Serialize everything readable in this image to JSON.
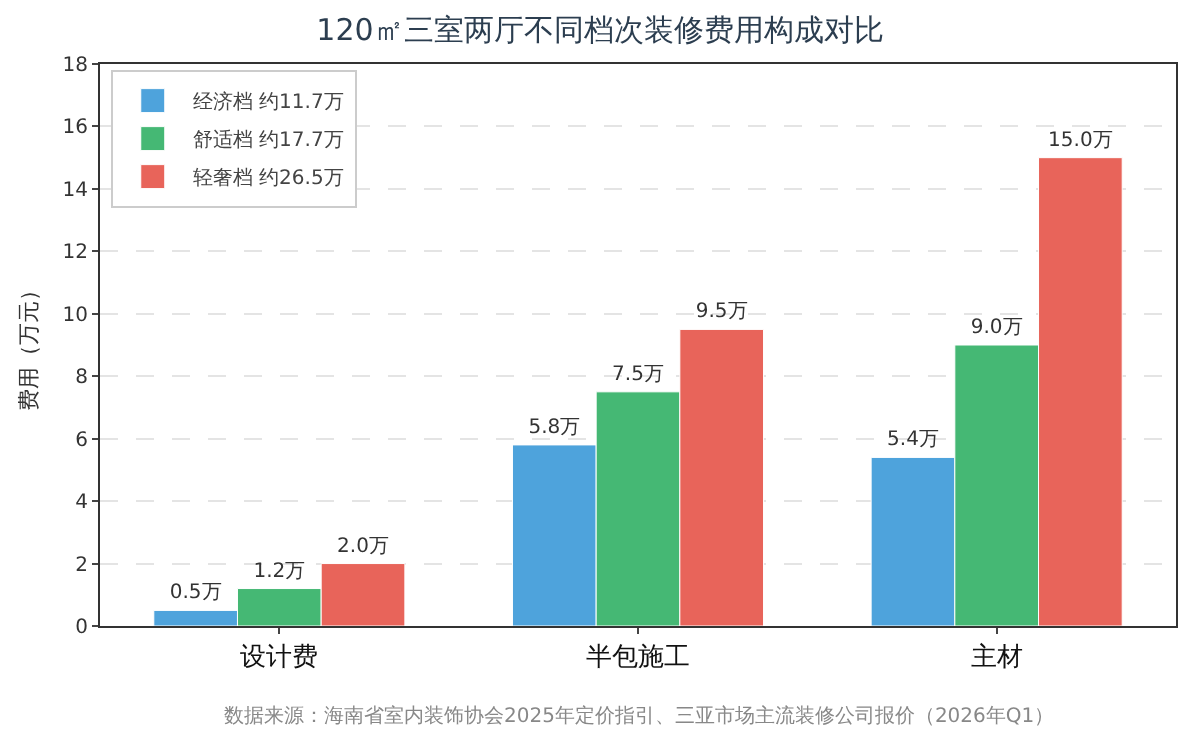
{
  "chart_data": {
    "type": "bar",
    "title": "120㎡三室两厅不同档次装修费用构成对比",
    "ylabel": "费用（万元）",
    "categories": [
      "设计费",
      "半包施工",
      "主材"
    ],
    "series": [
      {
        "name": "经济档 约11.7万",
        "color": "#4ea3dc",
        "values": [
          0.5,
          5.8,
          5.4
        ],
        "value_labels": [
          "0.5万",
          "5.8万",
          "5.4万"
        ]
      },
      {
        "name": "舒适档 约17.7万",
        "color": "#45b874",
        "values": [
          1.2,
          7.5,
          9.0
        ],
        "value_labels": [
          "1.2万",
          "7.5万",
          "9.0万"
        ]
      },
      {
        "name": "轻奢档 约26.5万",
        "color": "#e8645a",
        "values": [
          2.0,
          9.5,
          15.0
        ],
        "value_labels": [
          "2.0万",
          "9.5万",
          "15.0万"
        ]
      }
    ],
    "ylim": [
      0,
      18
    ],
    "yticks": [
      0,
      2,
      4,
      6,
      8,
      10,
      12,
      14,
      16,
      18
    ],
    "grid": "y",
    "legend": "top left",
    "annotations": [
      "数据来源：海南省室内装饰协会2025年定价指引、三亚市场主流装修公司报价（2026年Q1）"
    ]
  }
}
